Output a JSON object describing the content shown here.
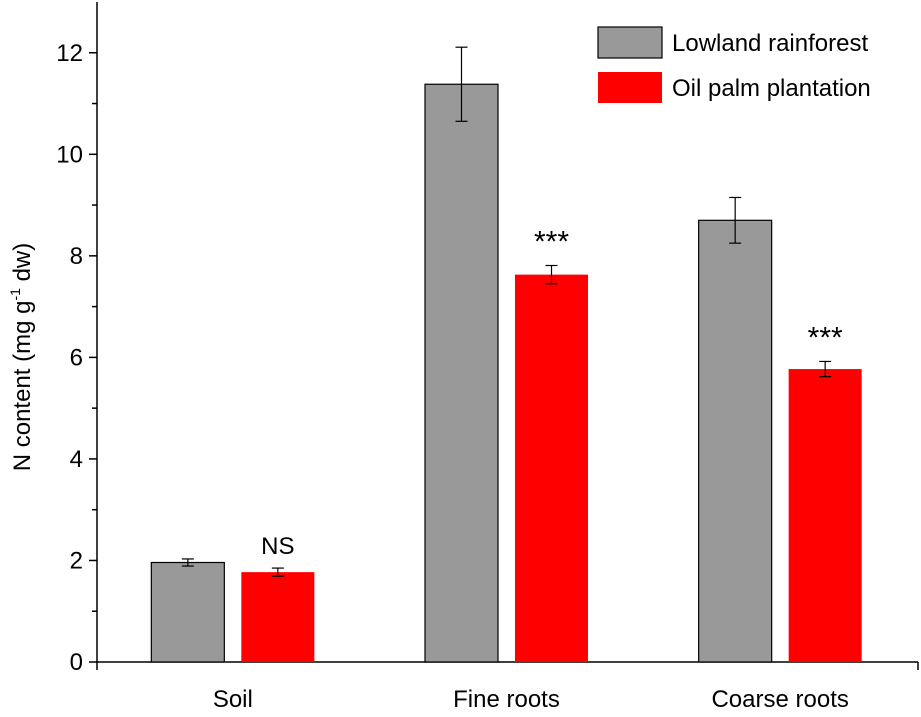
{
  "chart_data": {
    "type": "bar",
    "ylabel": {
      "text": "N content (mg g",
      "superscript": "-1",
      "suffix": " dw)"
    },
    "categories": [
      "Soil",
      "Fine roots",
      "Coarse roots"
    ],
    "series": [
      {
        "name": "Lowland rainforest",
        "color": "#999999",
        "values": [
          1.96,
          11.38,
          8.7
        ],
        "errors": [
          0.07,
          0.73,
          0.45
        ]
      },
      {
        "name": "Oil palm plantation",
        "color": "#ff0000",
        "values": [
          1.77,
          7.63,
          5.77
        ],
        "errors": [
          0.08,
          0.18,
          0.15
        ],
        "annotations": [
          "NS",
          "***",
          "***"
        ]
      }
    ],
    "ylim": [
      0,
      13
    ],
    "yticks": [
      0,
      2,
      4,
      6,
      8,
      10,
      12
    ],
    "yminorticks": [
      1,
      3,
      5,
      7,
      9,
      11
    ],
    "grid": false,
    "legend": "top-right"
  }
}
